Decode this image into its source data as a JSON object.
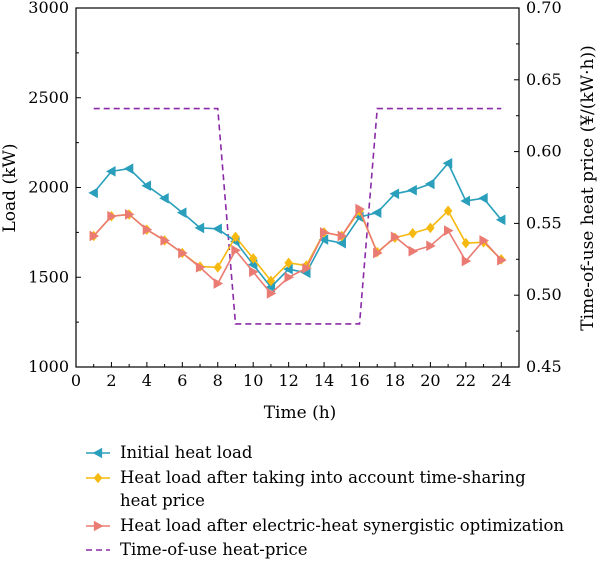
{
  "chart_data": {
    "type": "line",
    "xlabel": "Time (h)",
    "ylabel": "Load (kW)",
    "y2label": "Time-of-use heat price (¥/(kW·h))",
    "xlim": [
      0,
      25
    ],
    "ylim": [
      1000,
      3000
    ],
    "y2lim": [
      0.45,
      0.7
    ],
    "xticks": [
      "0",
      "2",
      "4",
      "6",
      "8",
      "10",
      "12",
      "14",
      "16",
      "18",
      "20",
      "22",
      "24"
    ],
    "yticks": [
      "1000",
      "1500",
      "2000",
      "2500",
      "3000"
    ],
    "y2ticks": [
      "0.45",
      "0.50",
      "0.55",
      "0.60",
      "0.65",
      "0.70"
    ],
    "legend_position": "bottom",
    "x": [
      1,
      2,
      3,
      4,
      5,
      6,
      7,
      8,
      9,
      10,
      11,
      12,
      13,
      14,
      15,
      16,
      17,
      18,
      19,
      20,
      21,
      22,
      23,
      24
    ],
    "series": [
      {
        "name": "Initial heat load",
        "color": "#2a9fbc",
        "marker": "triangle-left",
        "values": [
          1970,
          2090,
          2105,
          2010,
          1940,
          1860,
          1775,
          1770,
          1700,
          1570,
          1445,
          1545,
          1525,
          1710,
          1690,
          1835,
          1860,
          1965,
          1985,
          2020,
          2135,
          1925,
          1940,
          1820
        ]
      },
      {
        "name_lines": [
          "Heat load after taking into account time-sharing",
          "heat price"
        ],
        "color": "#f6b90f",
        "marker": "diamond",
        "values": [
          1730,
          1840,
          1850,
          1765,
          1705,
          1635,
          1560,
          1555,
          1725,
          1605,
          1480,
          1580,
          1565,
          1750,
          1730,
          1870,
          1640,
          1720,
          1745,
          1775,
          1870,
          1690,
          1695,
          1600
        ]
      },
      {
        "name": "Heat load after electric-heat synergistic optimization",
        "color": "#ea7b73",
        "marker": "triangle-right",
        "values": [
          1730,
          1840,
          1850,
          1765,
          1705,
          1635,
          1555,
          1465,
          1650,
          1530,
          1410,
          1500,
          1550,
          1750,
          1730,
          1880,
          1635,
          1725,
          1645,
          1675,
          1760,
          1590,
          1705,
          1595
        ]
      }
    ],
    "price_series": {
      "name": "Time-of-use heat-price",
      "color": "#8a2aa6",
      "x": [
        1,
        8,
        9,
        16,
        17,
        24
      ],
      "values": [
        0.63,
        0.63,
        0.48,
        0.48,
        0.63,
        0.63
      ]
    }
  }
}
